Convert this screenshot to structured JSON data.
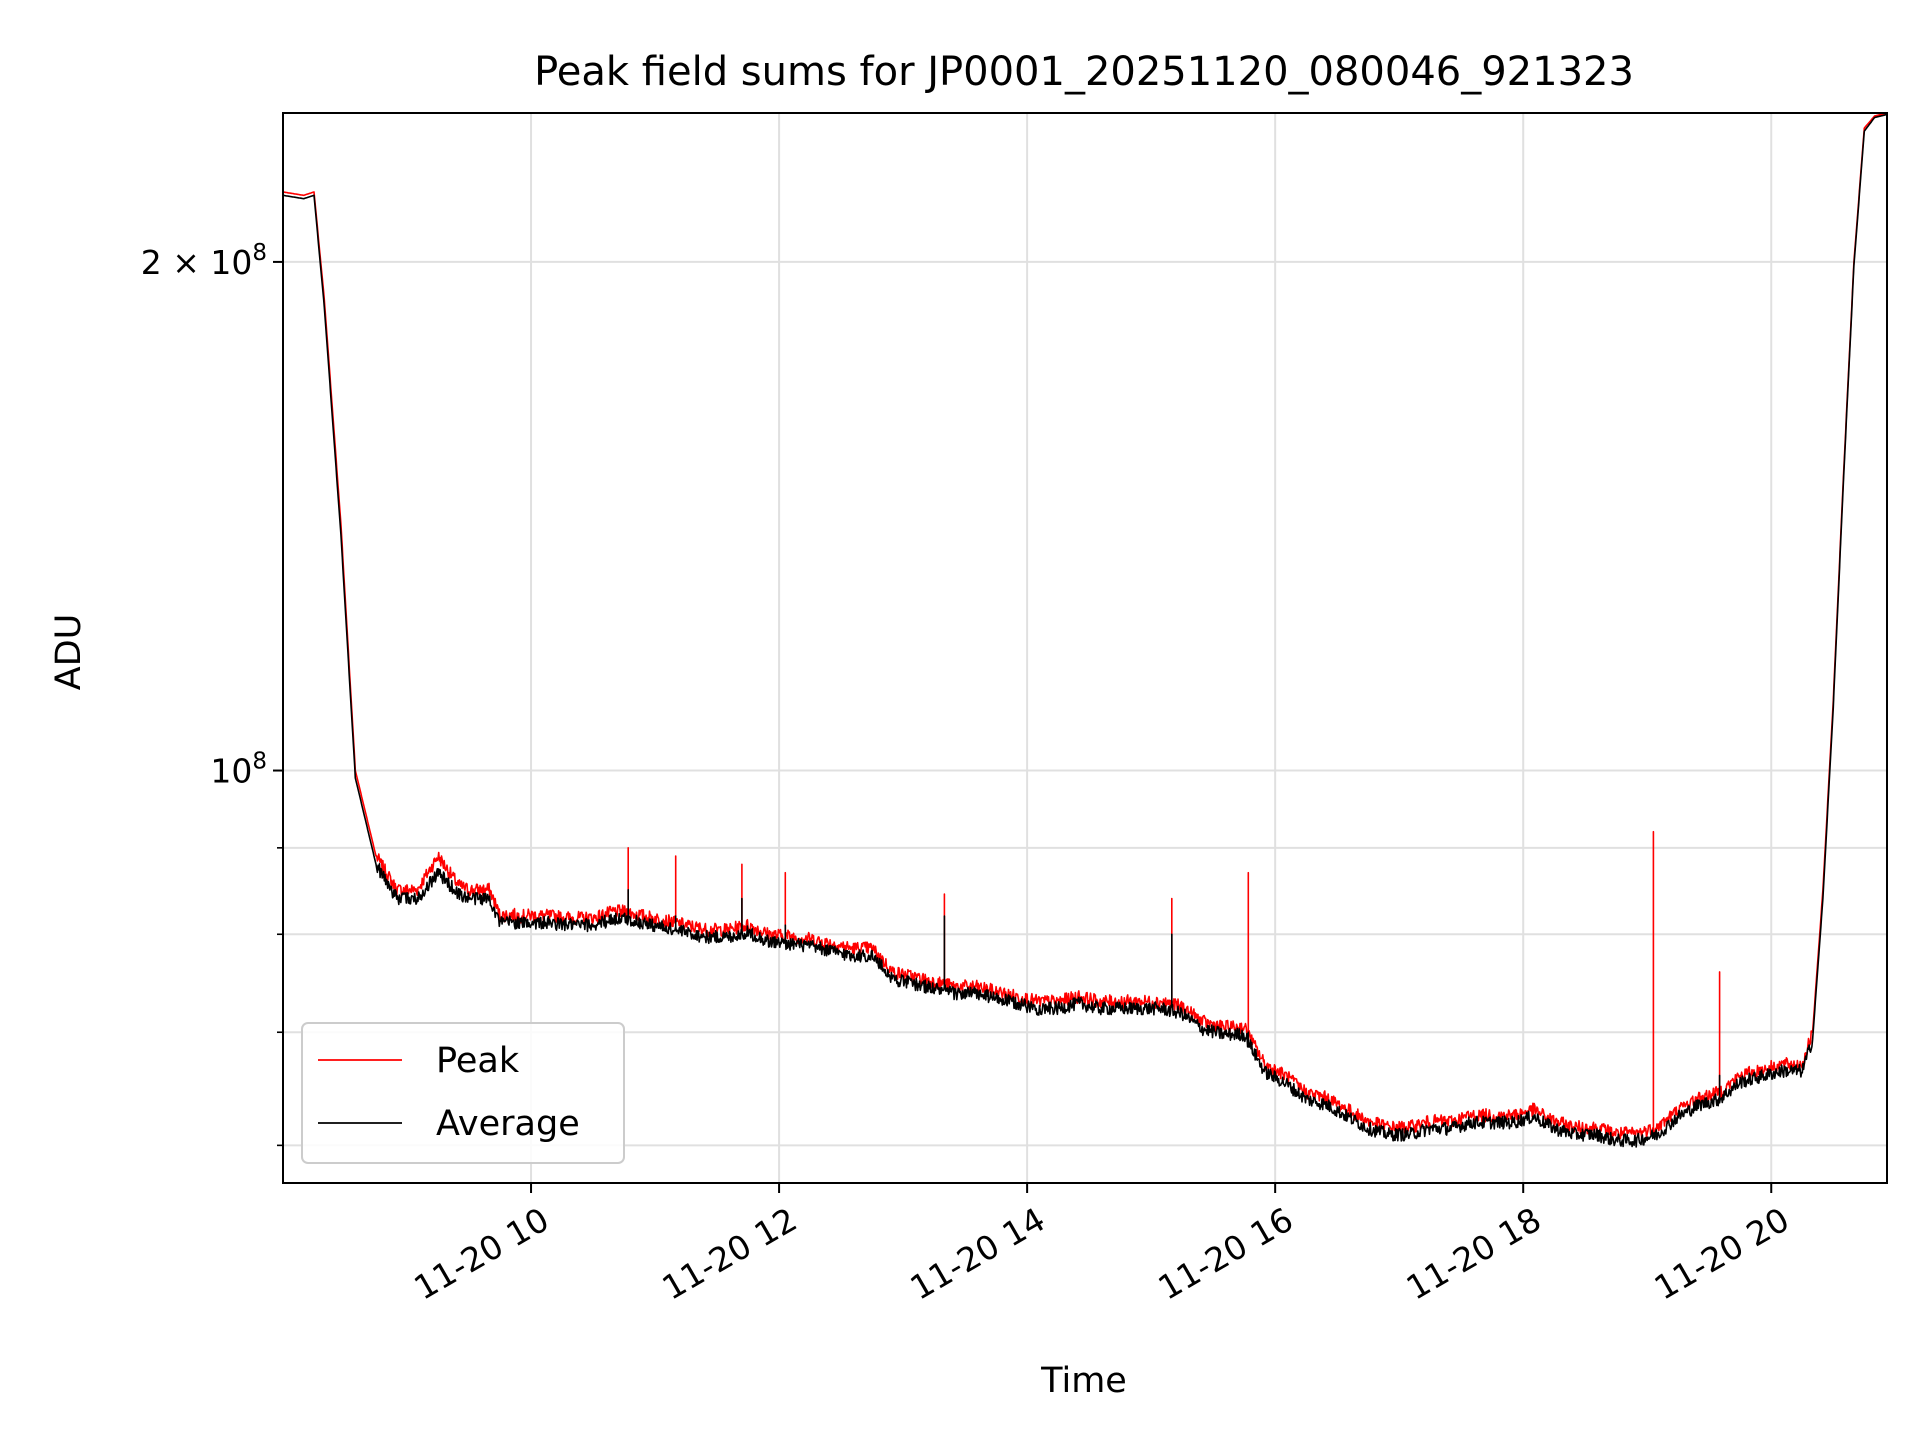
{
  "chart_data": {
    "type": "line",
    "title": "Peak field sums for JP0001_20251120_080046_921323",
    "xlabel": "Time",
    "ylabel": "ADU",
    "y_scale": "log",
    "ylim": [
      57000000,
      245000000
    ],
    "xlim": [
      "2025-11-20 08:00",
      "2025-11-20 20:56"
    ],
    "grid": true,
    "legend": {
      "location": "lower-left",
      "entries": [
        "Peak",
        "Average"
      ]
    },
    "x_ticks": [
      {
        "value": "2025-11-20 10:00",
        "label": "11-20 10"
      },
      {
        "value": "2025-11-20 12:00",
        "label": "11-20 12"
      },
      {
        "value": "2025-11-20 14:00",
        "label": "11-20 14"
      },
      {
        "value": "2025-11-20 16:00",
        "label": "11-20 16"
      },
      {
        "value": "2025-11-20 18:00",
        "label": "11-20 18"
      },
      {
        "value": "2025-11-20 20:00",
        "label": "11-20 20"
      }
    ],
    "y_ticks": [
      {
        "value": 100000000,
        "base": "10",
        "exp": "8"
      },
      {
        "value": 200000000,
        "coef": "2 × 10",
        "exp": "8"
      }
    ],
    "y_minor_ticks": [
      60000000,
      70000000,
      80000000,
      90000000
    ],
    "series": [
      {
        "name": "Peak",
        "color": "#ff0000",
        "x": [
          "08:00",
          "08:10",
          "08:15",
          "08:20",
          "08:28",
          "08:35",
          "08:45",
          "08:55",
          "09:05",
          "09:15",
          "09:25",
          "09:30",
          "09:35",
          "09:40",
          "09:45",
          "09:50",
          "09:55",
          "10:00",
          "10:10",
          "10:20",
          "10:30",
          "10:40",
          "10:45",
          "10:55",
          "11:05",
          "11:15",
          "11:25",
          "11:35",
          "11:45",
          "11:55",
          "12:05",
          "12:15",
          "12:25",
          "12:35",
          "12:45",
          "12:55",
          "13:05",
          "13:15",
          "13:25",
          "13:35",
          "13:45",
          "13:55",
          "14:05",
          "14:15",
          "14:25",
          "14:35",
          "14:45",
          "14:55",
          "15:05",
          "15:15",
          "15:25",
          "15:35",
          "15:45",
          "15:55",
          "16:05",
          "16:15",
          "16:25",
          "16:35",
          "16:45",
          "16:55",
          "17:05",
          "17:15",
          "17:25",
          "17:35",
          "17:45",
          "17:55",
          "18:05",
          "18:15",
          "18:25",
          "18:35",
          "18:45",
          "18:55",
          "19:05",
          "19:15",
          "19:25",
          "19:35",
          "19:45",
          "19:55",
          "20:05",
          "20:15",
          "20:20",
          "20:25",
          "20:30",
          "20:35",
          "20:40",
          "20:45",
          "20:50",
          "20:56"
        ],
        "y": [
          220000000,
          219000000,
          220000000,
          190000000,
          140000000,
          100000000,
          89000000,
          85000000,
          85000000,
          89000000,
          85500000,
          85000000,
          85000000,
          85000000,
          82000000,
          82200000,
          82000000,
          82100000,
          82000000,
          81800000,
          81800000,
          82500000,
          82500000,
          82000000,
          81500000,
          81000000,
          80500000,
          80500000,
          81000000,
          80000000,
          79800000,
          79500000,
          79000000,
          78500000,
          78500000,
          76000000,
          75500000,
          75000000,
          74500000,
          74500000,
          74000000,
          73500000,
          73000000,
          73000000,
          73500000,
          73000000,
          73000000,
          73000000,
          73000000,
          72500000,
          71000000,
          70500000,
          70500000,
          67000000,
          66000000,
          64500000,
          64000000,
          63000000,
          62000000,
          61500000,
          61500000,
          62000000,
          62000000,
          62500000,
          62500000,
          62500000,
          63000000,
          62000000,
          61500000,
          61500000,
          61000000,
          61000000,
          61500000,
          63000000,
          64000000,
          64500000,
          66000000,
          66500000,
          67000000,
          67000000,
          70000000,
          85000000,
          110000000,
          150000000,
          200000000,
          240000000,
          244000000,
          245000000
        ]
      },
      {
        "name": "Average",
        "color": "#000000",
        "x": [
          "08:00",
          "08:10",
          "08:15",
          "08:20",
          "08:28",
          "08:35",
          "08:45",
          "08:55",
          "09:05",
          "09:15",
          "09:25",
          "09:30",
          "09:35",
          "09:40",
          "09:45",
          "09:50",
          "09:55",
          "10:00",
          "10:10",
          "10:20",
          "10:30",
          "10:40",
          "10:45",
          "10:55",
          "11:05",
          "11:15",
          "11:25",
          "11:35",
          "11:45",
          "11:55",
          "12:05",
          "12:15",
          "12:25",
          "12:35",
          "12:45",
          "12:55",
          "13:05",
          "13:15",
          "13:25",
          "13:35",
          "13:45",
          "13:55",
          "14:05",
          "14:15",
          "14:25",
          "14:35",
          "14:45",
          "14:55",
          "15:05",
          "15:15",
          "15:25",
          "15:35",
          "15:45",
          "15:55",
          "16:05",
          "16:15",
          "16:25",
          "16:35",
          "16:45",
          "16:55",
          "17:05",
          "17:15",
          "17:25",
          "17:35",
          "17:45",
          "17:55",
          "18:05",
          "18:15",
          "18:25",
          "18:35",
          "18:45",
          "18:55",
          "19:05",
          "19:15",
          "19:25",
          "19:35",
          "19:45",
          "19:55",
          "20:05",
          "20:15",
          "20:20",
          "20:25",
          "20:30",
          "20:35",
          "20:40",
          "20:45",
          "20:50",
          "20:56"
        ],
        "y": [
          219000000,
          218000000,
          219000000,
          188000000,
          138000000,
          99000000,
          88000000,
          84000000,
          84000000,
          87000000,
          84500000,
          84000000,
          84000000,
          84000000,
          81200000,
          81400000,
          81200000,
          81300000,
          81200000,
          81000000,
          81000000,
          81700000,
          81700000,
          81200000,
          80700000,
          80200000,
          79700000,
          79700000,
          80200000,
          79200000,
          79000000,
          78700000,
          78200000,
          77700000,
          77700000,
          75300000,
          74800000,
          74300000,
          73800000,
          73800000,
          73300000,
          72800000,
          72300000,
          72300000,
          72800000,
          72300000,
          72300000,
          72300000,
          72300000,
          71800000,
          70300000,
          69800000,
          69800000,
          66300000,
          65300000,
          63900000,
          63400000,
          62400000,
          61400000,
          60900000,
          60900000,
          61400000,
          61400000,
          61900000,
          61900000,
          61900000,
          62400000,
          61400000,
          60900000,
          60900000,
          60400000,
          60400000,
          60900000,
          62400000,
          63400000,
          63900000,
          65400000,
          65900000,
          66400000,
          66400000,
          69300000,
          84000000,
          109000000,
          149000000,
          199000000,
          239000000,
          243500000,
          244500000
        ]
      }
    ],
    "spikes": [
      {
        "time": "10:47",
        "peak": 90000000,
        "average": 85000000
      },
      {
        "time": "11:10",
        "peak": 89000000,
        "average": 82000000
      },
      {
        "time": "11:42",
        "peak": 88000000,
        "average": 84000000
      },
      {
        "time": "12:03",
        "peak": 87000000,
        "average": 81000000
      },
      {
        "time": "13:20",
        "peak": 84500000,
        "average": 82000000
      },
      {
        "time": "15:10",
        "peak": 84000000,
        "average": 80000000
      },
      {
        "time": "15:47",
        "peak": 87000000,
        "average": 70000000
      },
      {
        "time": "19:03",
        "peak": 92000000,
        "average": 61000000
      },
      {
        "time": "19:35",
        "peak": 76000000,
        "average": 66000000
      }
    ]
  }
}
